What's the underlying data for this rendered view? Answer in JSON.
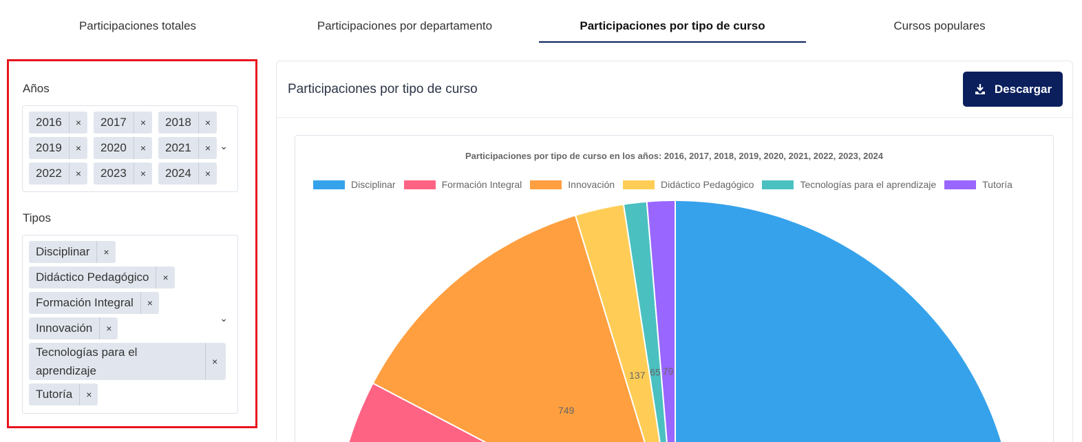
{
  "tabs": [
    {
      "label": "Participaciones totales"
    },
    {
      "label": "Participaciones por departamento"
    },
    {
      "label": "Participaciones por tipo de curso",
      "active": true
    },
    {
      "label": "Cursos populares"
    }
  ],
  "filters": {
    "years_label": "Años",
    "years": [
      "2016",
      "2017",
      "2018",
      "2019",
      "2020",
      "2021",
      "2022",
      "2023",
      "2024"
    ],
    "types_label": "Tipos",
    "types": [
      "Disciplinar",
      "Didáctico Pedagógico",
      "Formación Integral",
      "Innovación",
      "Tecnologías para el aprendizaje",
      "Tutoría"
    ],
    "remove_glyph": "×"
  },
  "card": {
    "title": "Participaciones por tipo de curso",
    "download_label": "Descargar",
    "download_icon": "download-icon"
  },
  "chart_data": {
    "type": "pie",
    "title": "Participaciones por tipo de curso en los años: 2016, 2017, 2018, 2019, 2020, 2021, 2022, 2023, 2024",
    "legend_position": "top",
    "categories": [
      "Disciplinar",
      "Formación Integral",
      "Innovación",
      "Didáctico Pedagógico",
      "Tecnologías para el aprendizaje",
      "Tutoría"
    ],
    "values": [
      4520,
      400,
      749,
      137,
      65,
      79
    ],
    "colors": [
      "#36a2eb",
      "#ff6384",
      "#ff9f40",
      "#ffcd56",
      "#4bc0c0",
      "#9966ff"
    ]
  }
}
